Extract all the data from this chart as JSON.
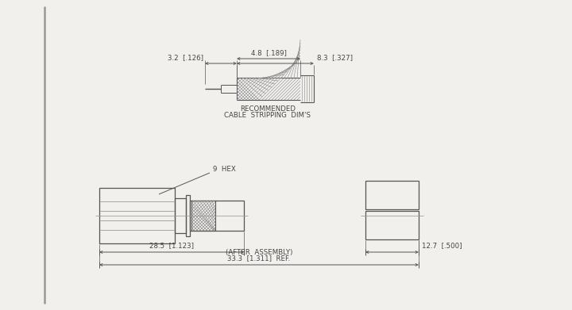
{
  "bg_color": "#f2f0ed",
  "line_color": "#555555",
  "dim_color": "#555555",
  "text_color": "#444444",
  "hatch_color": "#888888",
  "font_size": 6.2,
  "cable_label_1": "RECOMMENDED",
  "cable_label_2": "CABLE  STRIPPING  DIM'S",
  "hex_label": "9  HEX",
  "dim_28_5": "28.5  [1.123]",
  "dim_33_3": "33.3  [1.311]  REF.",
  "dim_after": "(AFTER  ASSEMBLY)",
  "dim_12_7": "12.7  [.500]",
  "dim_4_8": "4.8  [.189]",
  "dim_8_3": "8.3  [.327]",
  "dim_3_2": "3.2  [.126]"
}
